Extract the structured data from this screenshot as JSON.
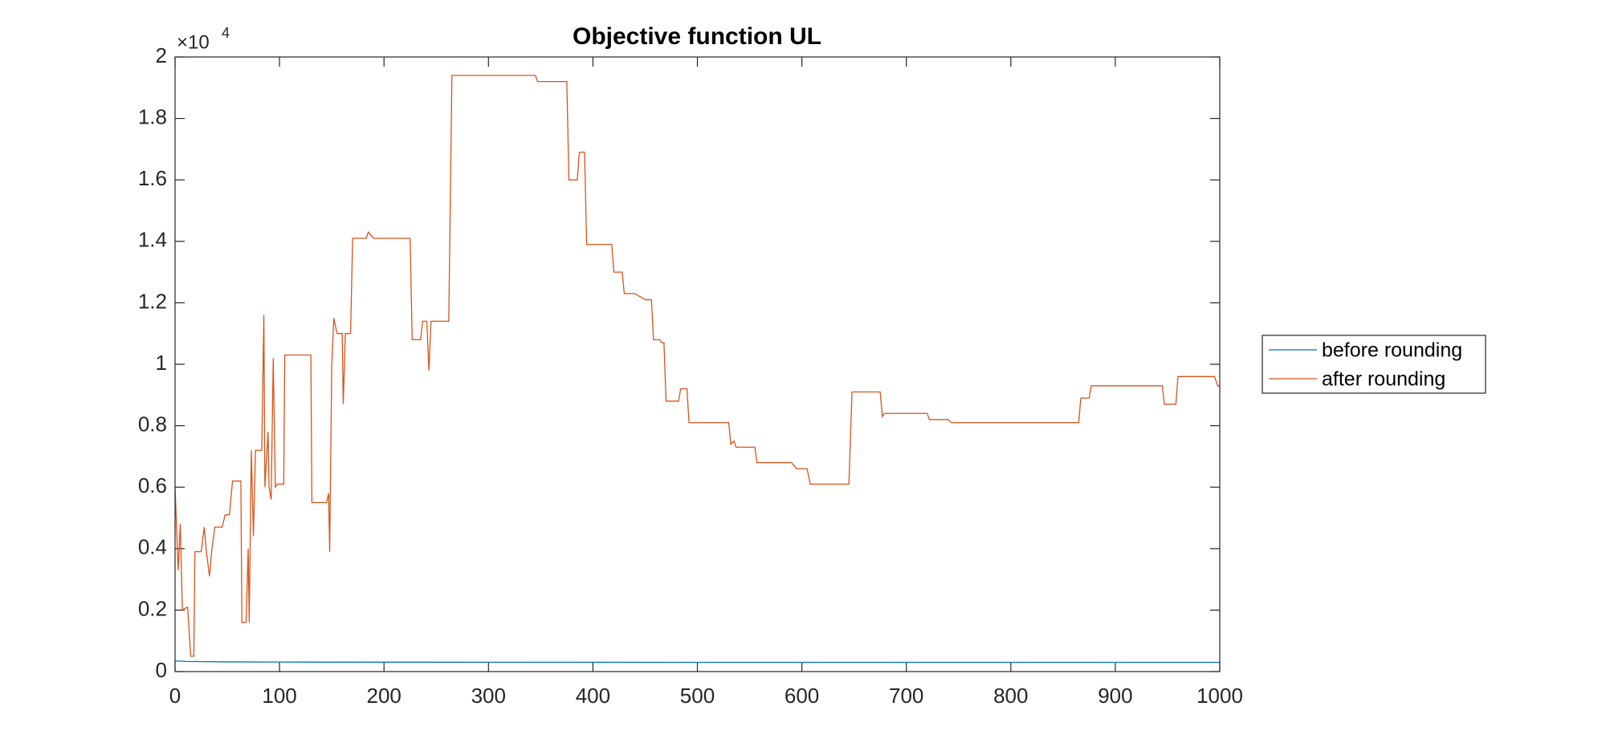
{
  "chart_data": {
    "type": "line",
    "title": "Objective function UL",
    "y_multiplier": {
      "base": "×10",
      "exponent": "4"
    },
    "xlim": [
      0,
      1000
    ],
    "xticks": [
      0,
      100,
      200,
      300,
      400,
      500,
      600,
      700,
      800,
      900,
      1000
    ],
    "ylim": [
      0,
      20000
    ],
    "yticks": [
      0,
      {
        "value": 2000,
        "label": "0.2"
      },
      {
        "value": 4000,
        "label": "0.4"
      },
      {
        "value": 6000,
        "label": "0.6"
      },
      {
        "value": 8000,
        "label": "0.8"
      },
      {
        "value": 10000,
        "label": "1"
      },
      {
        "value": 12000,
        "label": "1.2"
      },
      {
        "value": 14000,
        "label": "1.4"
      },
      {
        "value": 16000,
        "label": "1.6"
      },
      {
        "value": 18000,
        "label": "1.8"
      },
      {
        "value": 20000,
        "label": "2"
      }
    ],
    "grid": false,
    "legend": "east-outside",
    "series": [
      {
        "name": "before rounding",
        "color": "#0072BD",
        "x": [
          0,
          10,
          50,
          100,
          200,
          500,
          1000
        ],
        "values": [
          350,
          330,
          315,
          310,
          305,
          300,
          300
        ]
      },
      {
        "name": "after rounding",
        "color": "#D95319",
        "x": [
          0,
          3,
          5,
          7,
          12,
          15,
          18,
          19,
          25,
          28,
          30,
          33,
          35,
          38,
          45,
          48,
          52,
          55,
          63,
          64,
          68,
          70,
          71,
          73,
          75,
          77,
          83,
          85,
          86,
          89,
          90,
          92,
          94,
          96,
          98,
          104,
          105,
          130,
          131,
          145,
          147,
          148,
          150,
          152,
          155,
          160,
          161,
          163,
          168,
          170,
          183,
          185,
          190,
          225,
          227,
          235,
          237,
          241,
          243,
          245,
          262,
          265,
          345,
          347,
          375,
          377,
          385,
          387,
          392,
          394,
          418,
          420,
          428,
          430,
          440,
          445,
          450,
          456,
          458,
          464,
          466,
          468,
          470,
          482,
          484,
          490,
          492,
          530,
          532,
          535,
          537,
          555,
          557,
          590,
          595,
          605,
          608,
          645,
          648,
          675,
          677,
          679,
          720,
          722,
          740,
          743,
          865,
          867,
          875,
          877,
          945,
          947,
          958,
          960,
          995,
          998,
          1000
        ],
        "values": [
          6000,
          3300,
          4800,
          2000,
          2100,
          500,
          500,
          3900,
          3900,
          4700,
          3900,
          3100,
          3900,
          4700,
          4700,
          5100,
          5100,
          6200,
          6200,
          1600,
          1600,
          4000,
          1600,
          7200,
          4400,
          7200,
          7200,
          11600,
          6000,
          7800,
          6000,
          5600,
          10200,
          6000,
          6100,
          6100,
          10300,
          10300,
          5500,
          5500,
          5800,
          3900,
          10000,
          11500,
          11000,
          11000,
          8700,
          11000,
          11000,
          14100,
          14100,
          14300,
          14100,
          14100,
          10800,
          10800,
          11400,
          11400,
          9800,
          11400,
          11400,
          19400,
          19400,
          19200,
          19200,
          16000,
          16000,
          16900,
          16900,
          13900,
          13900,
          13000,
          13000,
          12300,
          12300,
          12200,
          12100,
          12100,
          10800,
          10800,
          10700,
          10700,
          8800,
          8800,
          9200,
          9200,
          8100,
          8100,
          7400,
          7500,
          7300,
          7300,
          6800,
          6800,
          6600,
          6600,
          6100,
          6100,
          9100,
          9100,
          8300,
          8400,
          8400,
          8200,
          8200,
          8100,
          8100,
          8900,
          8900,
          9300,
          9300,
          8700,
          8700,
          9600,
          9600,
          9300,
          9300
        ]
      }
    ]
  }
}
